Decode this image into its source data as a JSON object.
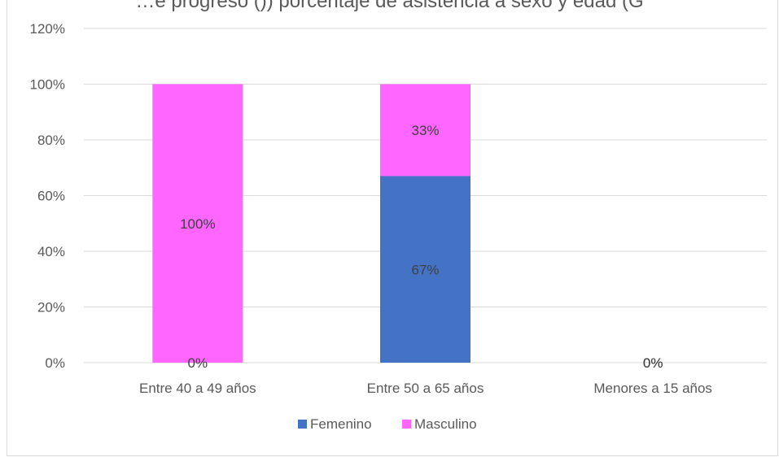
{
  "chart_data": {
    "type": "bar",
    "stacked": true,
    "title": "…e progreso ()) porcentaje de asistencia a sexo y edad (G",
    "categories": [
      "Entre 40 a 49 años",
      "Entre 50 a 65 años",
      "Menores a 15 años"
    ],
    "series": [
      {
        "name": "Femenino",
        "color": "#4472C4",
        "values": [
          0,
          67,
          0
        ],
        "labels": [
          "0%",
          "67%",
          "0%"
        ]
      },
      {
        "name": "Masculino",
        "color": "#FF66FF",
        "values": [
          100,
          33,
          0
        ],
        "labels": [
          "100%",
          "33%",
          "0%"
        ]
      }
    ],
    "ylim": [
      0,
      120
    ],
    "yticks": [
      "0%",
      "20%",
      "40%",
      "60%",
      "80%",
      "100%",
      "120%"
    ],
    "xlabel": "",
    "ylabel": "",
    "grid": true,
    "legend": "bottom"
  }
}
